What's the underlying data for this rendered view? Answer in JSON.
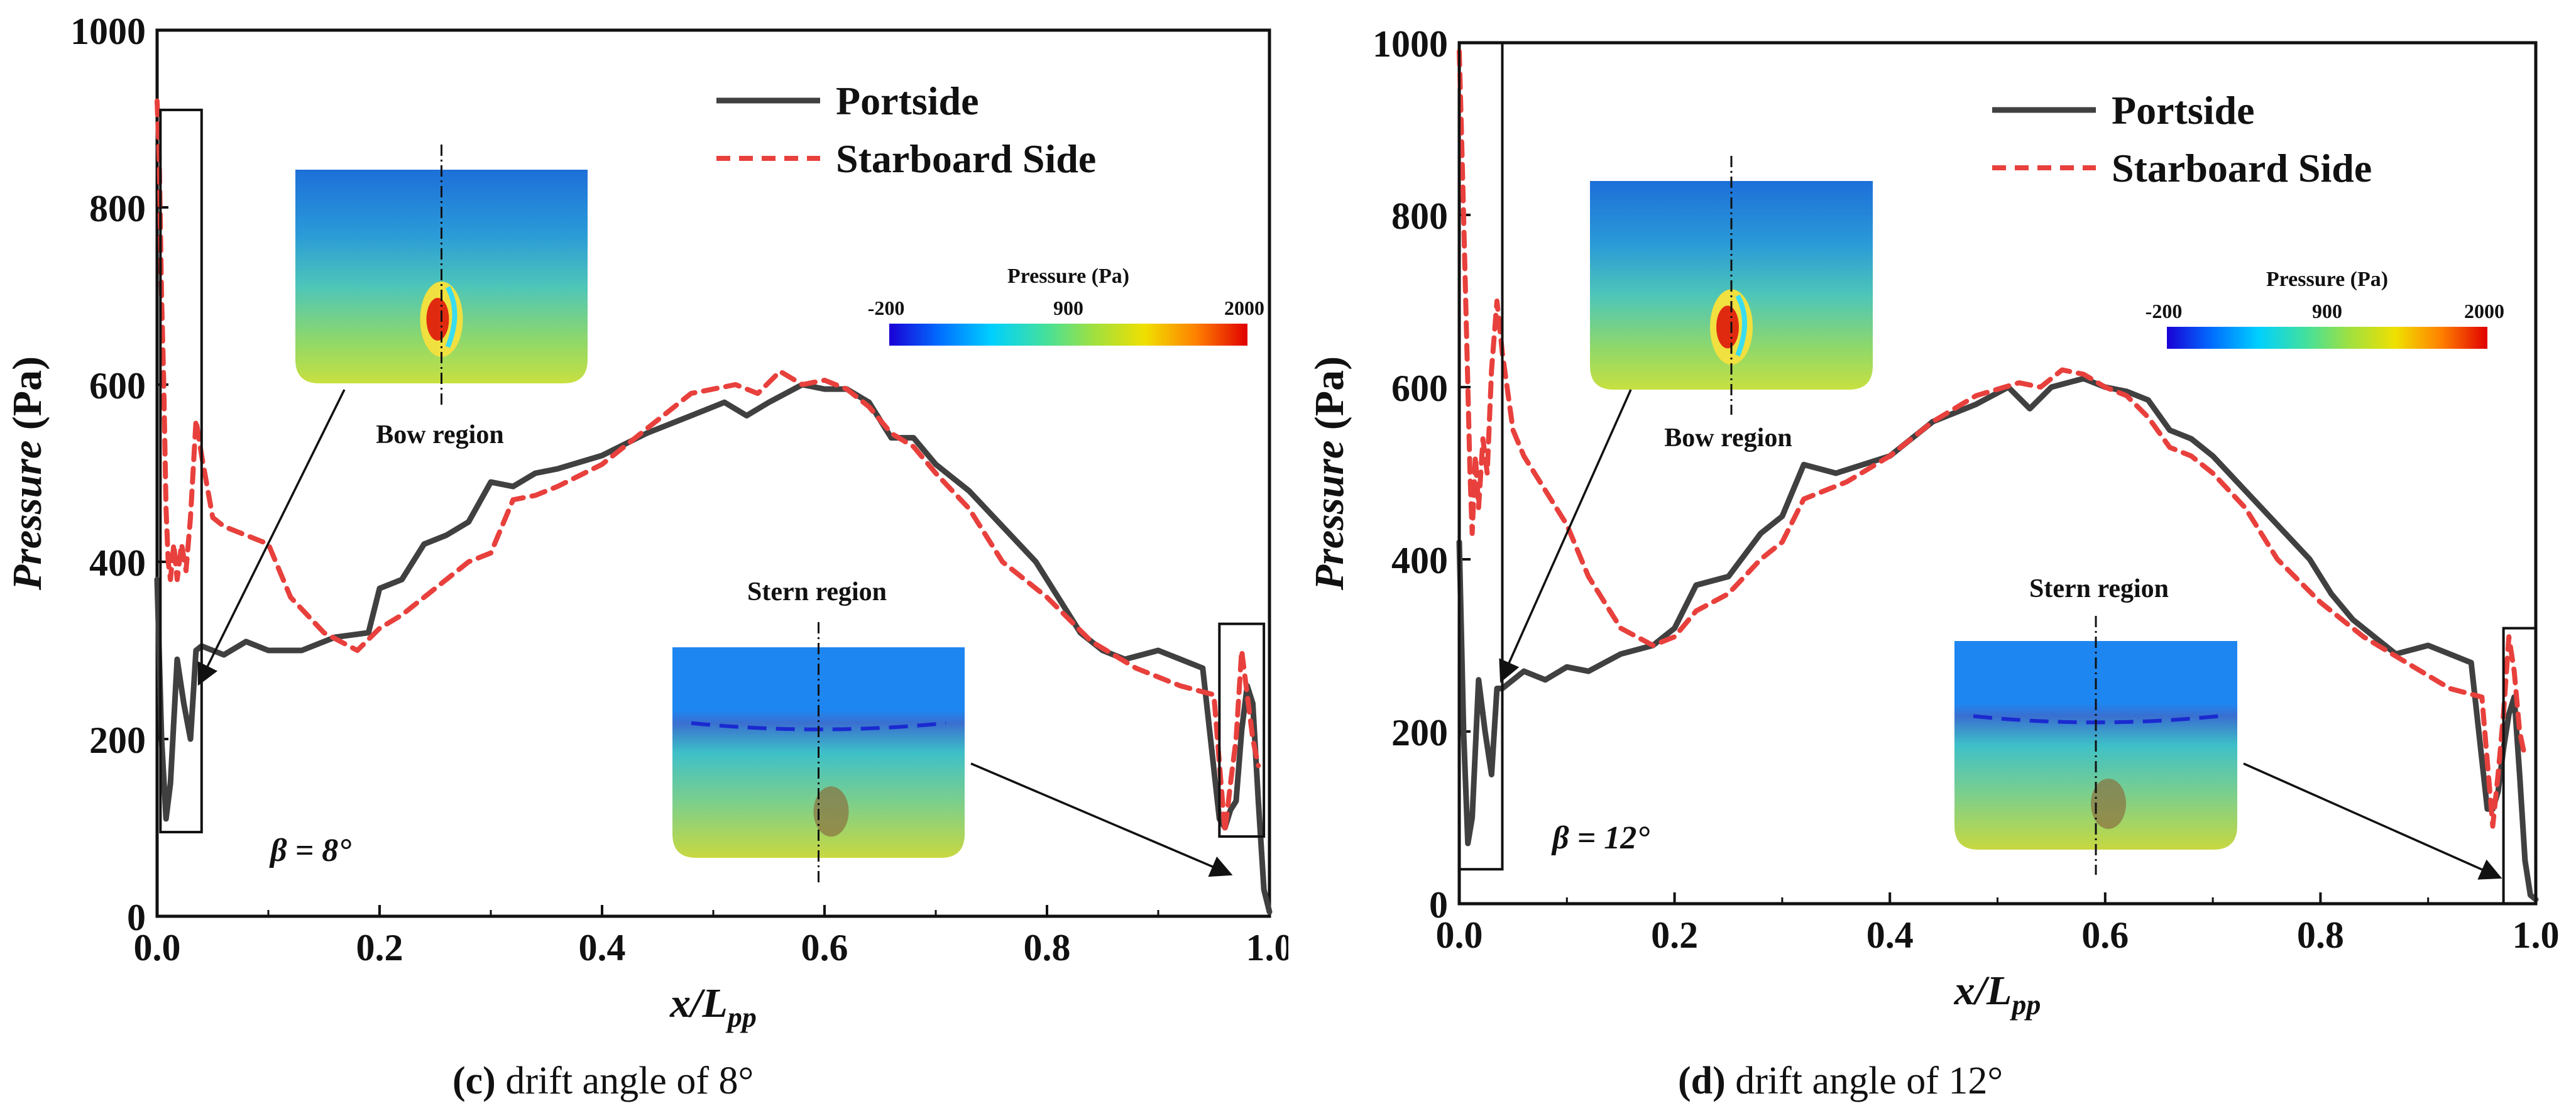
{
  "chart_data": [
    {
      "type": "line",
      "panel_label": "(c)",
      "caption": "drift angle of 8°",
      "xlabel": "x/L",
      "xlabel_sub": "pp",
      "ylabel_italic": "Pressure",
      "ylabel_unit": "(Pa)",
      "xlim": [
        0.0,
        1.0
      ],
      "ylim": [
        0,
        1000
      ],
      "xticks": [
        "0.0",
        "0.2",
        "0.4",
        "0.6",
        "0.8",
        "1.0"
      ],
      "yticks": [
        "0",
        "200",
        "400",
        "600",
        "800",
        "1000"
      ],
      "annotation": "β = 8°",
      "legend_position": "top-right",
      "series": [
        {
          "name": "Portside",
          "style": "solid",
          "color": "#404040",
          "x": [
            0.0,
            0.004,
            0.008,
            0.012,
            0.018,
            0.024,
            0.03,
            0.035,
            0.04,
            0.06,
            0.08,
            0.1,
            0.13,
            0.16,
            0.19,
            0.2,
            0.22,
            0.24,
            0.26,
            0.28,
            0.3,
            0.32,
            0.34,
            0.36,
            0.4,
            0.44,
            0.48,
            0.51,
            0.53,
            0.55,
            0.58,
            0.6,
            0.62,
            0.64,
            0.66,
            0.68,
            0.7,
            0.73,
            0.76,
            0.79,
            0.81,
            0.83,
            0.85,
            0.87,
            0.9,
            0.92,
            0.94,
            0.955,
            0.96,
            0.965,
            0.97,
            0.975,
            0.98,
            0.985,
            0.99,
            0.995,
            1.0
          ],
          "y": [
            380,
            200,
            110,
            150,
            290,
            240,
            200,
            300,
            305,
            295,
            310,
            300,
            300,
            315,
            320,
            370,
            380,
            420,
            430,
            445,
            490,
            485,
            500,
            505,
            520,
            545,
            565,
            580,
            565,
            580,
            600,
            595,
            595,
            580,
            540,
            540,
            510,
            480,
            440,
            400,
            360,
            320,
            300,
            290,
            300,
            290,
            280,
            110,
            100,
            120,
            130,
            210,
            260,
            240,
            130,
            30,
            5
          ]
        },
        {
          "name": "Starboard Side",
          "style": "dashed",
          "color": "#e8403c",
          "x": [
            0.0,
            0.002,
            0.004,
            0.006,
            0.008,
            0.01,
            0.012,
            0.015,
            0.018,
            0.022,
            0.026,
            0.03,
            0.035,
            0.04,
            0.05,
            0.06,
            0.08,
            0.1,
            0.12,
            0.15,
            0.18,
            0.2,
            0.22,
            0.25,
            0.28,
            0.3,
            0.32,
            0.34,
            0.36,
            0.4,
            0.44,
            0.48,
            0.52,
            0.54,
            0.56,
            0.58,
            0.6,
            0.62,
            0.64,
            0.66,
            0.68,
            0.7,
            0.73,
            0.76,
            0.8,
            0.84,
            0.88,
            0.92,
            0.95,
            0.96,
            0.965,
            0.97,
            0.975,
            0.98,
            0.985,
            0.99
          ],
          "y": [
            920,
            850,
            700,
            600,
            460,
            400,
            380,
            420,
            380,
            420,
            390,
            450,
            560,
            520,
            450,
            440,
            430,
            420,
            360,
            320,
            300,
            325,
            340,
            370,
            400,
            410,
            470,
            475,
            485,
            510,
            550,
            590,
            600,
            590,
            615,
            600,
            605,
            595,
            575,
            545,
            530,
            500,
            460,
            400,
            360,
            310,
            280,
            260,
            250,
            95,
            150,
            200,
            300,
            250,
            200,
            170
          ]
        }
      ],
      "insets": [
        {
          "title": "Bow region"
        },
        {
          "title": "Stern region"
        }
      ],
      "colorbar": {
        "title": "Pressure (Pa)",
        "min_label": "-200",
        "mid_label": "900",
        "max_label": "2000",
        "colors": [
          "#1a00d6",
          "#0070ff",
          "#00d0ff",
          "#40e0a0",
          "#a0e040",
          "#f0e000",
          "#ff8000",
          "#e00000"
        ]
      }
    },
    {
      "type": "line",
      "panel_label": "(d)",
      "caption": "drift angle of 12°",
      "xlabel": "x/L",
      "xlabel_sub": "pp",
      "ylabel_italic": "Pressure",
      "ylabel_unit": "(Pa)",
      "xlim": [
        0.0,
        1.0
      ],
      "ylim": [
        0,
        1000
      ],
      "xticks": [
        "0.0",
        "0.2",
        "0.4",
        "0.6",
        "0.8",
        "1.0"
      ],
      "yticks": [
        "0",
        "200",
        "400",
        "600",
        "800",
        "1000"
      ],
      "annotation": "β = 12°",
      "legend_position": "top-right",
      "series": [
        {
          "name": "Portside",
          "style": "solid",
          "color": "#404040",
          "x": [
            0.0,
            0.004,
            0.008,
            0.012,
            0.018,
            0.024,
            0.03,
            0.035,
            0.04,
            0.06,
            0.08,
            0.1,
            0.12,
            0.15,
            0.18,
            0.2,
            0.22,
            0.25,
            0.28,
            0.3,
            0.32,
            0.35,
            0.4,
            0.44,
            0.48,
            0.51,
            0.53,
            0.55,
            0.58,
            0.6,
            0.62,
            0.64,
            0.66,
            0.68,
            0.7,
            0.73,
            0.76,
            0.79,
            0.81,
            0.83,
            0.85,
            0.87,
            0.9,
            0.92,
            0.94,
            0.955,
            0.96,
            0.965,
            0.97,
            0.975,
            0.98,
            0.985,
            0.99,
            0.995,
            1.0
          ],
          "y": [
            420,
            200,
            70,
            100,
            260,
            200,
            150,
            250,
            250,
            270,
            260,
            275,
            270,
            290,
            300,
            320,
            370,
            380,
            430,
            450,
            510,
            500,
            520,
            560,
            580,
            600,
            575,
            600,
            610,
            600,
            595,
            585,
            550,
            540,
            520,
            480,
            440,
            400,
            360,
            330,
            310,
            290,
            300,
            290,
            280,
            110,
            110,
            130,
            180,
            220,
            240,
            150,
            50,
            10,
            5
          ]
        },
        {
          "name": "Starboard Side",
          "style": "dashed",
          "color": "#e8403c",
          "x": [
            0.0,
            0.002,
            0.004,
            0.006,
            0.008,
            0.01,
            0.012,
            0.015,
            0.018,
            0.022,
            0.026,
            0.03,
            0.035,
            0.04,
            0.05,
            0.06,
            0.08,
            0.1,
            0.12,
            0.15,
            0.18,
            0.2,
            0.22,
            0.25,
            0.28,
            0.3,
            0.32,
            0.34,
            0.36,
            0.4,
            0.44,
            0.48,
            0.52,
            0.54,
            0.56,
            0.58,
            0.6,
            0.62,
            0.64,
            0.66,
            0.68,
            0.7,
            0.73,
            0.76,
            0.8,
            0.84,
            0.88,
            0.92,
            0.95,
            0.96,
            0.965,
            0.97,
            0.975,
            0.98,
            0.985,
            0.99
          ],
          "y": [
            990,
            900,
            800,
            700,
            600,
            500,
            430,
            520,
            460,
            540,
            500,
            620,
            700,
            640,
            550,
            520,
            480,
            440,
            380,
            320,
            300,
            310,
            340,
            360,
            400,
            420,
            470,
            480,
            490,
            520,
            560,
            590,
            605,
            600,
            620,
            615,
            600,
            590,
            565,
            530,
            520,
            500,
            460,
            400,
            350,
            310,
            280,
            250,
            240,
            90,
            150,
            220,
            310,
            270,
            200,
            170
          ]
        }
      ],
      "insets": [
        {
          "title": "Bow region"
        },
        {
          "title": "Stern region"
        }
      ],
      "colorbar": {
        "title": "Pressure (Pa)",
        "min_label": "-200",
        "mid_label": "900",
        "max_label": "2000",
        "colors": [
          "#1a00d6",
          "#0070ff",
          "#00d0ff",
          "#40e0a0",
          "#a0e040",
          "#f0e000",
          "#ff8000",
          "#e00000"
        ]
      }
    }
  ]
}
